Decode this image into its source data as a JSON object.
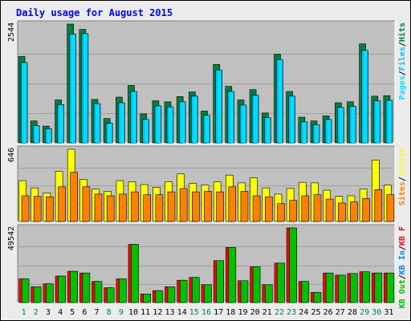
{
  "title": "Daily usage for August 2015",
  "colors": {
    "background": "#ececec",
    "frame": "#000000",
    "panel": "#c0c0c0",
    "grid": "#a0a0a0",
    "title": "#0000ff",
    "hits": "#008040",
    "files": "#00c0ff",
    "pages": "#00e0ff",
    "visits": "#ffff00",
    "sites": "#ff8000",
    "kb_in": "#0080ff",
    "kb_out": "#00c000",
    "kb_f": "#ff0000",
    "day_weekend": "#008040",
    "day_weekday": "#000000"
  },
  "chart_data": [
    {
      "type": "bar",
      "panel": "hits",
      "categories": [
        "1",
        "2",
        "3",
        "4",
        "5",
        "6",
        "7",
        "8",
        "9",
        "10",
        "11",
        "12",
        "13",
        "14",
        "15",
        "16",
        "17",
        "18",
        "19",
        "20",
        "21",
        "22",
        "23",
        "24",
        "25",
        "26",
        "27",
        "28",
        "29",
        "30",
        "31"
      ],
      "max_label": "2544",
      "ylim": [
        0,
        2544
      ],
      "legend": [
        {
          "label": "Hits",
          "color": "#008040"
        },
        {
          "label": "/",
          "color": "#000000"
        },
        {
          "label": "Files",
          "color": "#00c0ff"
        },
        {
          "label": "/",
          "color": "#000000"
        },
        {
          "label": "Pages",
          "color": "#00e0ff"
        }
      ],
      "series": [
        {
          "key": "hits",
          "values": [
            1850,
            470,
            360,
            920,
            2544,
            2430,
            930,
            520,
            980,
            1230,
            620,
            900,
            880,
            990,
            1090,
            680,
            1680,
            1210,
            920,
            1140,
            640,
            1900,
            1100,
            550,
            470,
            580,
            860,
            880,
            2120,
            1000,
            1010
          ]
        },
        {
          "key": "files",
          "values": [
            1720,
            370,
            300,
            820,
            2330,
            2340,
            840,
            420,
            860,
            1100,
            500,
            790,
            770,
            880,
            1000,
            590,
            1560,
            1100,
            810,
            1020,
            540,
            1780,
            1000,
            450,
            390,
            500,
            760,
            780,
            1980,
            900,
            910
          ]
        },
        {
          "key": "pages",
          "values": [
            1700,
            360,
            290,
            810,
            2310,
            2320,
            830,
            410,
            850,
            1090,
            490,
            780,
            760,
            870,
            990,
            580,
            1550,
            1090,
            800,
            1010,
            530,
            1770,
            990,
            440,
            380,
            490,
            750,
            770,
            1970,
            890,
            900
          ]
        }
      ]
    },
    {
      "type": "bar",
      "panel": "visits",
      "categories": [
        "1",
        "2",
        "3",
        "4",
        "5",
        "6",
        "7",
        "8",
        "9",
        "10",
        "11",
        "12",
        "13",
        "14",
        "15",
        "16",
        "17",
        "18",
        "19",
        "20",
        "21",
        "22",
        "23",
        "24",
        "25",
        "26",
        "27",
        "28",
        "29",
        "30",
        "31"
      ],
      "max_label": "646",
      "ylim": [
        0,
        646
      ],
      "legend": [
        {
          "label": "Visits",
          "color": "#ffff00"
        },
        {
          "label": "/",
          "color": "#000000"
        },
        {
          "label": "Sites",
          "color": "#ff8000"
        }
      ],
      "series": [
        {
          "key": "visits",
          "values": [
            365,
            300,
            255,
            450,
            646,
            375,
            290,
            270,
            365,
            355,
            330,
            305,
            355,
            425,
            340,
            325,
            355,
            415,
            345,
            390,
            300,
            245,
            295,
            350,
            345,
            280,
            225,
            230,
            290,
            550,
            325
          ]
        },
        {
          "key": "sites",
          "values": [
            230,
            225,
            220,
            310,
            440,
            310,
            245,
            230,
            245,
            265,
            240,
            240,
            265,
            295,
            265,
            270,
            265,
            310,
            270,
            230,
            220,
            160,
            190,
            230,
            240,
            200,
            165,
            175,
            205,
            285,
            240
          ]
        }
      ]
    },
    {
      "type": "bar",
      "panel": "kbytes",
      "categories": [
        "1",
        "2",
        "3",
        "4",
        "5",
        "6",
        "7",
        "8",
        "9",
        "10",
        "11",
        "12",
        "13",
        "14",
        "15",
        "16",
        "17",
        "18",
        "19",
        "20",
        "21",
        "22",
        "23",
        "24",
        "25",
        "26",
        "27",
        "28",
        "29",
        "30",
        "31"
      ],
      "max_label": "49542",
      "ylim": [
        0,
        49542
      ],
      "legend": [
        {
          "label": "KB F",
          "color": "#ff0000"
        },
        {
          "label": "/",
          "color": "#000000"
        },
        {
          "label": "KB In",
          "color": "#0080ff"
        },
        {
          "label": "/",
          "color": "#000000"
        },
        {
          "label": "KB Out",
          "color": "#00c000"
        }
      ],
      "series": [
        {
          "key": "kb_f",
          "values": [
            15700,
            10500,
            12400,
            17600,
            20700,
            19600,
            14000,
            9800,
            15700,
            38600,
            5700,
            7900,
            10500,
            14800,
            16700,
            11800,
            27800,
            36600,
            14500,
            23700,
            11800,
            26200,
            49542,
            14000,
            6700,
            19600,
            18200,
            19300,
            20400,
            19600,
            19600
          ]
        },
        {
          "key": "kb_out",
          "values": [
            15700,
            10500,
            12400,
            17600,
            20700,
            19600,
            14000,
            9800,
            15700,
            38600,
            5700,
            7900,
            10500,
            14800,
            16700,
            11800,
            27800,
            36600,
            14500,
            23700,
            11800,
            26200,
            49542,
            14000,
            6700,
            19600,
            18200,
            19300,
            20400,
            19600,
            19600
          ]
        }
      ]
    }
  ],
  "days": [
    {
      "label": "1",
      "weekend": true
    },
    {
      "label": "2",
      "weekend": true
    },
    {
      "label": "3",
      "weekend": false
    },
    {
      "label": "4",
      "weekend": false
    },
    {
      "label": "5",
      "weekend": false
    },
    {
      "label": "6",
      "weekend": false
    },
    {
      "label": "7",
      "weekend": false
    },
    {
      "label": "8",
      "weekend": true
    },
    {
      "label": "9",
      "weekend": true
    },
    {
      "label": "10",
      "weekend": false
    },
    {
      "label": "11",
      "weekend": false
    },
    {
      "label": "12",
      "weekend": false
    },
    {
      "label": "13",
      "weekend": false
    },
    {
      "label": "14",
      "weekend": false
    },
    {
      "label": "15",
      "weekend": true
    },
    {
      "label": "16",
      "weekend": true
    },
    {
      "label": "17",
      "weekend": false
    },
    {
      "label": "18",
      "weekend": false
    },
    {
      "label": "19",
      "weekend": false
    },
    {
      "label": "20",
      "weekend": false
    },
    {
      "label": "21",
      "weekend": false
    },
    {
      "label": "22",
      "weekend": true
    },
    {
      "label": "23",
      "weekend": true
    },
    {
      "label": "24",
      "weekend": false
    },
    {
      "label": "25",
      "weekend": false
    },
    {
      "label": "26",
      "weekend": false
    },
    {
      "label": "27",
      "weekend": false
    },
    {
      "label": "28",
      "weekend": false
    },
    {
      "label": "29",
      "weekend": true
    },
    {
      "label": "30",
      "weekend": true
    },
    {
      "label": "31",
      "weekend": false
    }
  ]
}
